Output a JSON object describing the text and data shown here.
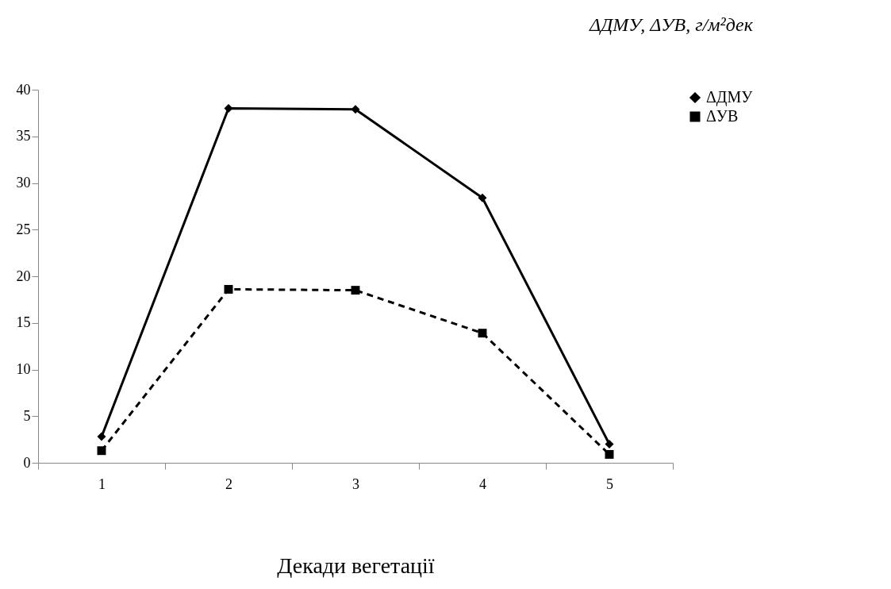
{
  "chart_data": {
    "type": "line",
    "title": "ΔДМУ, ΔУВ, г/м²дек",
    "xlabel": "Декади вегетації",
    "categories": [
      "1",
      "2",
      "3",
      "4",
      "5"
    ],
    "series": [
      {
        "name": "ΔДМУ",
        "color": "#000000",
        "marker": "diamond",
        "line_style": "solid",
        "values": [
          2.8,
          38.0,
          37.9,
          28.4,
          2.0
        ]
      },
      {
        "name": "ΔУВ",
        "color": "#000000",
        "marker": "square",
        "line_style": "dashed",
        "values": [
          1.3,
          18.6,
          18.5,
          13.9,
          0.9
        ]
      }
    ],
    "ylim": [
      0,
      40
    ],
    "yticks": [
      0,
      5,
      10,
      15,
      20,
      25,
      30,
      35,
      40
    ],
    "grid": false,
    "legend": "right"
  }
}
